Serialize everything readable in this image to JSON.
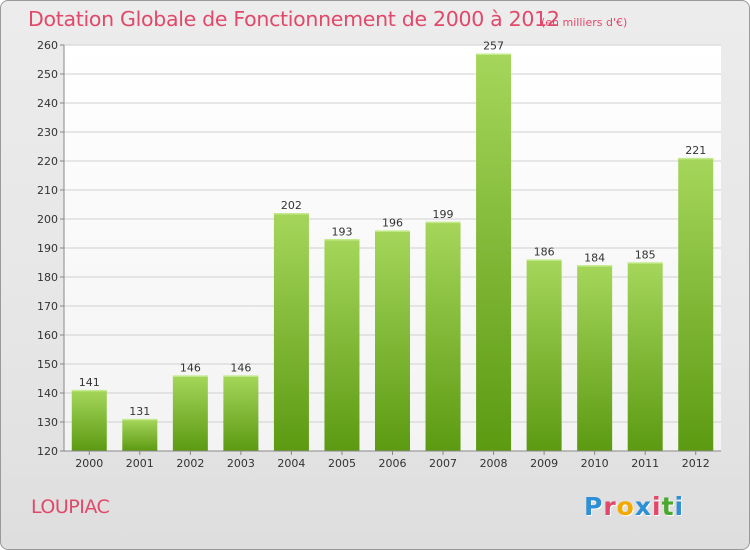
{
  "header": {
    "title": "Dotation Globale de Fonctionnement de 2000 à 2012",
    "unit": "(en milliers d'€)"
  },
  "footer": {
    "commune": "LOUPIAC",
    "logo": "Proxiti",
    "logo_colors": [
      "#2d8fd5",
      "#e2486a",
      "#f2a900",
      "#2d8fd5",
      "#e2486a",
      "#4aa82e",
      "#2d8fd5"
    ]
  },
  "colors": {
    "title": "#e2486a",
    "bar_light": "#a5d65b",
    "bar_dark": "#5c9a12",
    "grid": "#d0d0d0"
  },
  "chart_data": {
    "type": "bar",
    "title": "Dotation Globale de Fonctionnement de 2000 à 2012",
    "subtitle": "(en milliers d'€)",
    "categories": [
      "2000",
      "2001",
      "2002",
      "2003",
      "2004",
      "2005",
      "2006",
      "2007",
      "2008",
      "2009",
      "2010",
      "2011",
      "2012"
    ],
    "values": [
      141,
      131,
      146,
      146,
      202,
      193,
      196,
      199,
      257,
      186,
      184,
      185,
      221
    ],
    "ylim": [
      120,
      260
    ],
    "yticks": [
      120,
      130,
      140,
      150,
      160,
      170,
      180,
      190,
      200,
      210,
      220,
      230,
      240,
      250,
      260
    ],
    "grid": true,
    "data_labels": true
  }
}
